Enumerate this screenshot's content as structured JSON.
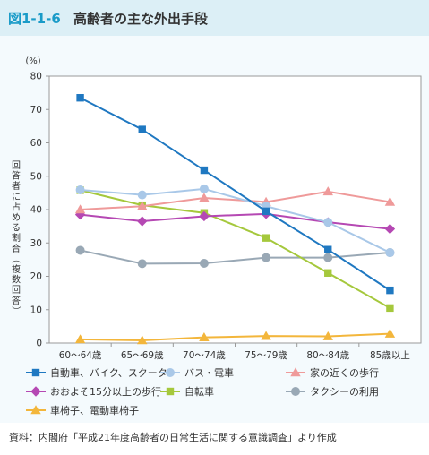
{
  "header": {
    "figure_number": "図1-1-6",
    "title": "高齢者の主な外出手段"
  },
  "source_note": "資料：内閣府「平成21年度高齢者の日常生活に関する意識調査」より作成",
  "colors": {
    "header_bg": "#dceff6",
    "plot_panel_bg": "#f4fafd",
    "accent": "#1a9bc8"
  },
  "chart_data": {
    "type": "line",
    "title": "",
    "unit_label": "(%)",
    "xlabel": "",
    "ylabel": "回答者に占める割合（複数回答）",
    "ylim": [
      0,
      80
    ],
    "y_ticks": [
      0,
      10,
      20,
      30,
      40,
      50,
      60,
      70,
      80
    ],
    "grid": false,
    "legend_position": "bottom",
    "categories": [
      "60～64歳",
      "65～69歳",
      "70～74歳",
      "75～79歳",
      "80～84歳",
      "85歳以上"
    ],
    "series": [
      {
        "name": "自動車、バイク、スクーター",
        "color": "#1f78c1",
        "marker": "square",
        "values": [
          73.5,
          64.0,
          51.8,
          39.5,
          28.0,
          15.8
        ]
      },
      {
        "name": "バス・電車",
        "color": "#a9c8e8",
        "marker": "circle",
        "values": [
          45.9,
          44.4,
          46.2,
          41.0,
          36.2,
          27.1
        ]
      },
      {
        "name": "家の近くの歩行",
        "color": "#ef9a9a",
        "marker": "triangle",
        "values": [
          40.0,
          41.0,
          43.5,
          42.3,
          45.4,
          42.3
        ]
      },
      {
        "name": "おおよそ15分以上の歩行",
        "color": "#b548b3",
        "marker": "diamond",
        "values": [
          38.5,
          36.5,
          38.0,
          38.7,
          36.2,
          34.2
        ]
      },
      {
        "name": "自転車",
        "color": "#a5c83c",
        "marker": "square",
        "values": [
          45.8,
          41.3,
          39.0,
          31.5,
          21.0,
          10.5
        ]
      },
      {
        "name": "タクシーの利用",
        "color": "#99a8b5",
        "marker": "circle",
        "values": [
          27.8,
          23.8,
          23.9,
          25.6,
          25.6,
          27.1
        ]
      },
      {
        "name": "車椅子、電動車椅子",
        "color": "#f3b63b",
        "marker": "triangle",
        "values": [
          1.1,
          0.8,
          1.7,
          2.1,
          2.0,
          2.8
        ]
      }
    ]
  }
}
